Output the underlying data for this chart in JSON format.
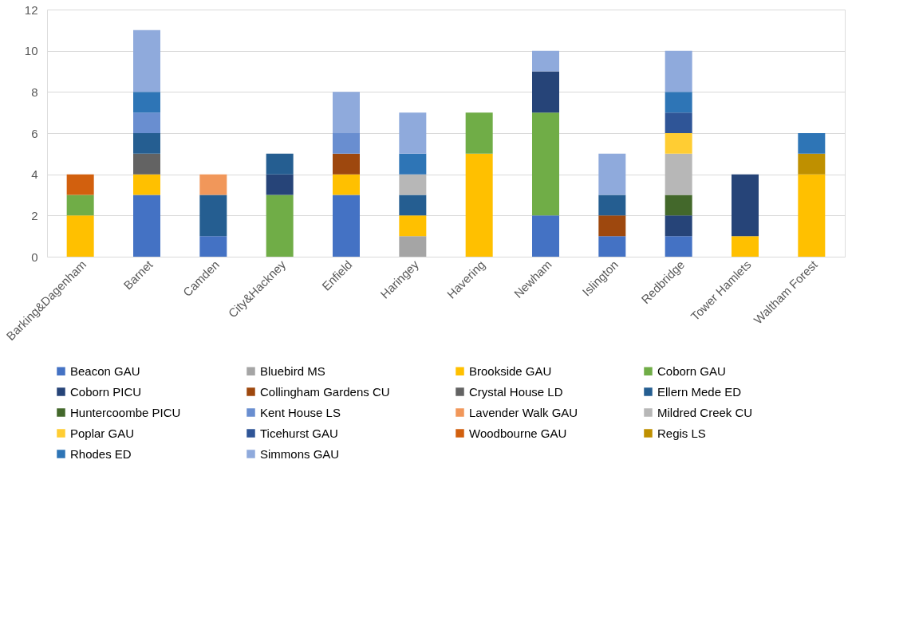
{
  "chart_data": {
    "type": "bar",
    "stacked": true,
    "categories": [
      "Barking&Dagenham",
      "Barnet",
      "Camden",
      "City&Hackney",
      "Enfield",
      "Haringey",
      "Havering",
      "Newham",
      "Islington",
      "Redbridge",
      "Tower Hamlets",
      "Waltham Forest"
    ],
    "ylim": [
      0,
      12
    ],
    "yticks": [
      0,
      2,
      4,
      6,
      8,
      10,
      12
    ],
    "grid": "y",
    "legend": "bottom",
    "series": [
      {
        "name": "Beacon GAU",
        "color": "#4472c4",
        "values": [
          null,
          3,
          1,
          null,
          3,
          null,
          null,
          2,
          1,
          1,
          null,
          null
        ]
      },
      {
        "name": "Bluebird MS",
        "color": "#a5a5a5",
        "values": [
          null,
          null,
          null,
          null,
          null,
          1,
          null,
          null,
          null,
          null,
          null,
          null
        ]
      },
      {
        "name": "Brookside GAU",
        "color": "#ffc000",
        "values": [
          2,
          1,
          null,
          null,
          1,
          1,
          5,
          null,
          null,
          null,
          1,
          4
        ]
      },
      {
        "name": "Coborn GAU",
        "color": "#70ad47",
        "values": [
          1,
          null,
          null,
          3,
          null,
          null,
          2,
          5,
          null,
          null,
          null,
          null
        ]
      },
      {
        "name": "Coborn PICU",
        "color": "#264478",
        "values": [
          null,
          null,
          null,
          1,
          null,
          null,
          null,
          2,
          null,
          1,
          3,
          null
        ]
      },
      {
        "name": "Collingham Gardens CU",
        "color": "#9e480e",
        "values": [
          null,
          null,
          null,
          null,
          1,
          null,
          null,
          null,
          1,
          null,
          null,
          null
        ]
      },
      {
        "name": "Crystal House LD",
        "color": "#636363",
        "values": [
          null,
          1,
          null,
          null,
          null,
          null,
          null,
          null,
          null,
          null,
          null,
          null
        ]
      },
      {
        "name": "Ellern Mede ED",
        "color": "#255e91",
        "values": [
          null,
          1,
          2,
          1,
          null,
          1,
          null,
          null,
          1,
          null,
          null,
          null
        ]
      },
      {
        "name": "Huntercoombe PICU",
        "color": "#43682b",
        "values": [
          null,
          null,
          null,
          null,
          null,
          null,
          null,
          null,
          null,
          1,
          null,
          null
        ]
      },
      {
        "name": "Kent House LS",
        "color": "#698ed0",
        "values": [
          null,
          1,
          null,
          null,
          1,
          null,
          null,
          null,
          null,
          null,
          null,
          null
        ]
      },
      {
        "name": "Lavender Walk GAU",
        "color": "#f1975a",
        "values": [
          null,
          null,
          1,
          null,
          null,
          null,
          null,
          null,
          null,
          null,
          null,
          null
        ]
      },
      {
        "name": "Mildred Creek CU",
        "color": "#b7b7b7",
        "values": [
          null,
          null,
          null,
          null,
          null,
          1,
          null,
          null,
          null,
          2,
          null,
          null
        ]
      },
      {
        "name": "Poplar GAU",
        "color": "#ffcd33",
        "values": [
          null,
          null,
          null,
          null,
          null,
          null,
          null,
          null,
          null,
          1,
          null,
          null
        ]
      },
      {
        "name": "Ticehurst GAU",
        "color": "#2f5597",
        "values": [
          null,
          null,
          null,
          null,
          null,
          null,
          null,
          null,
          null,
          1,
          null,
          null
        ]
      },
      {
        "name": "Woodbourne GAU",
        "color": "#d2600e",
        "values": [
          1,
          null,
          null,
          null,
          null,
          null,
          null,
          null,
          null,
          null,
          null,
          null
        ]
      },
      {
        "name": "Regis LS",
        "color": "#bf9000",
        "values": [
          null,
          null,
          null,
          null,
          null,
          null,
          null,
          null,
          null,
          null,
          null,
          1
        ]
      },
      {
        "name": "Rhodes ED",
        "color": "#2e75b6",
        "values": [
          null,
          1,
          null,
          null,
          null,
          1,
          null,
          null,
          null,
          1,
          null,
          1
        ]
      },
      {
        "name": "Simmons GAU",
        "color": "#8faadc",
        "values": [
          null,
          3,
          null,
          null,
          2,
          2,
          null,
          1,
          2,
          2,
          null,
          null
        ]
      }
    ]
  }
}
